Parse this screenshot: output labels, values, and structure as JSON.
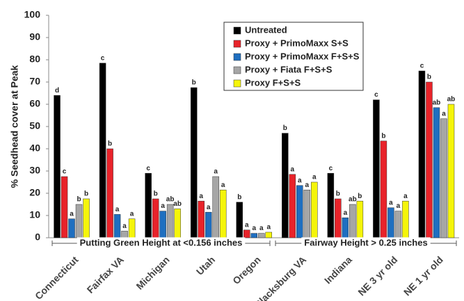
{
  "chart_data": {
    "type": "bar",
    "y_label": "% Seedhead cover at Peak",
    "categories": [
      "Connecticut",
      "Fairfax VA",
      "Michigan",
      "Utah",
      "Oregon",
      "Blacksburg VA",
      "Indiana",
      "NE 3 yr old",
      "NE 1 yr old"
    ],
    "series": [
      {
        "name": "Untreated",
        "color": "#000000",
        "values": [
          64,
          78.5,
          29,
          67.5,
          16,
          47,
          29,
          62,
          75
        ],
        "letters": [
          "d",
          "c",
          "c",
          "b",
          "b",
          "b",
          "c",
          "c",
          "c"
        ]
      },
      {
        "name": "Proxy + PrimoMaxx S+S",
        "color": "#e8232a",
        "values": [
          27.5,
          40,
          17.5,
          16.5,
          3.5,
          28.5,
          17.5,
          43.5,
          70
        ],
        "letters": [
          "c",
          "b",
          "b",
          "a",
          "a",
          "a",
          "b",
          "b",
          "b"
        ]
      },
      {
        "name": "Proxy + PrimoMaxx F+S+S",
        "color": "#1f6fc0",
        "values": [
          8.5,
          10.5,
          12,
          11.5,
          2,
          23.5,
          9,
          13.5,
          58.5
        ],
        "letters": [
          "a",
          "a",
          "a",
          "a",
          "a",
          "a",
          "a",
          "a",
          "ab"
        ]
      },
      {
        "name": "Proxy + Fiata F+S+S",
        "color": "#a6a6a6",
        "values": [
          15,
          3,
          15,
          27.5,
          2,
          21.5,
          15,
          12,
          53.5
        ],
        "letters": [
          "b",
          "a",
          "ab",
          "a",
          "a",
          "a",
          "ab",
          "a",
          "a"
        ]
      },
      {
        "name": "Proxy F+S+S",
        "color": "#f5f50a",
        "values": [
          17.5,
          8.5,
          13,
          21.5,
          2.5,
          25,
          16.5,
          16.5,
          60
        ],
        "letters": [
          "b",
          "a",
          "ab",
          "a",
          "a",
          "a",
          "b",
          "a",
          "ab"
        ]
      }
    ],
    "annotations": [
      "Putting Green Height at <0.156 inches",
      "Fairway Height > 0.25 inches"
    ],
    "ylim": [
      0,
      100
    ],
    "yticks": [
      0,
      10,
      20,
      30,
      40,
      50,
      60,
      70,
      80,
      90,
      100
    ],
    "legend": "top-right"
  }
}
